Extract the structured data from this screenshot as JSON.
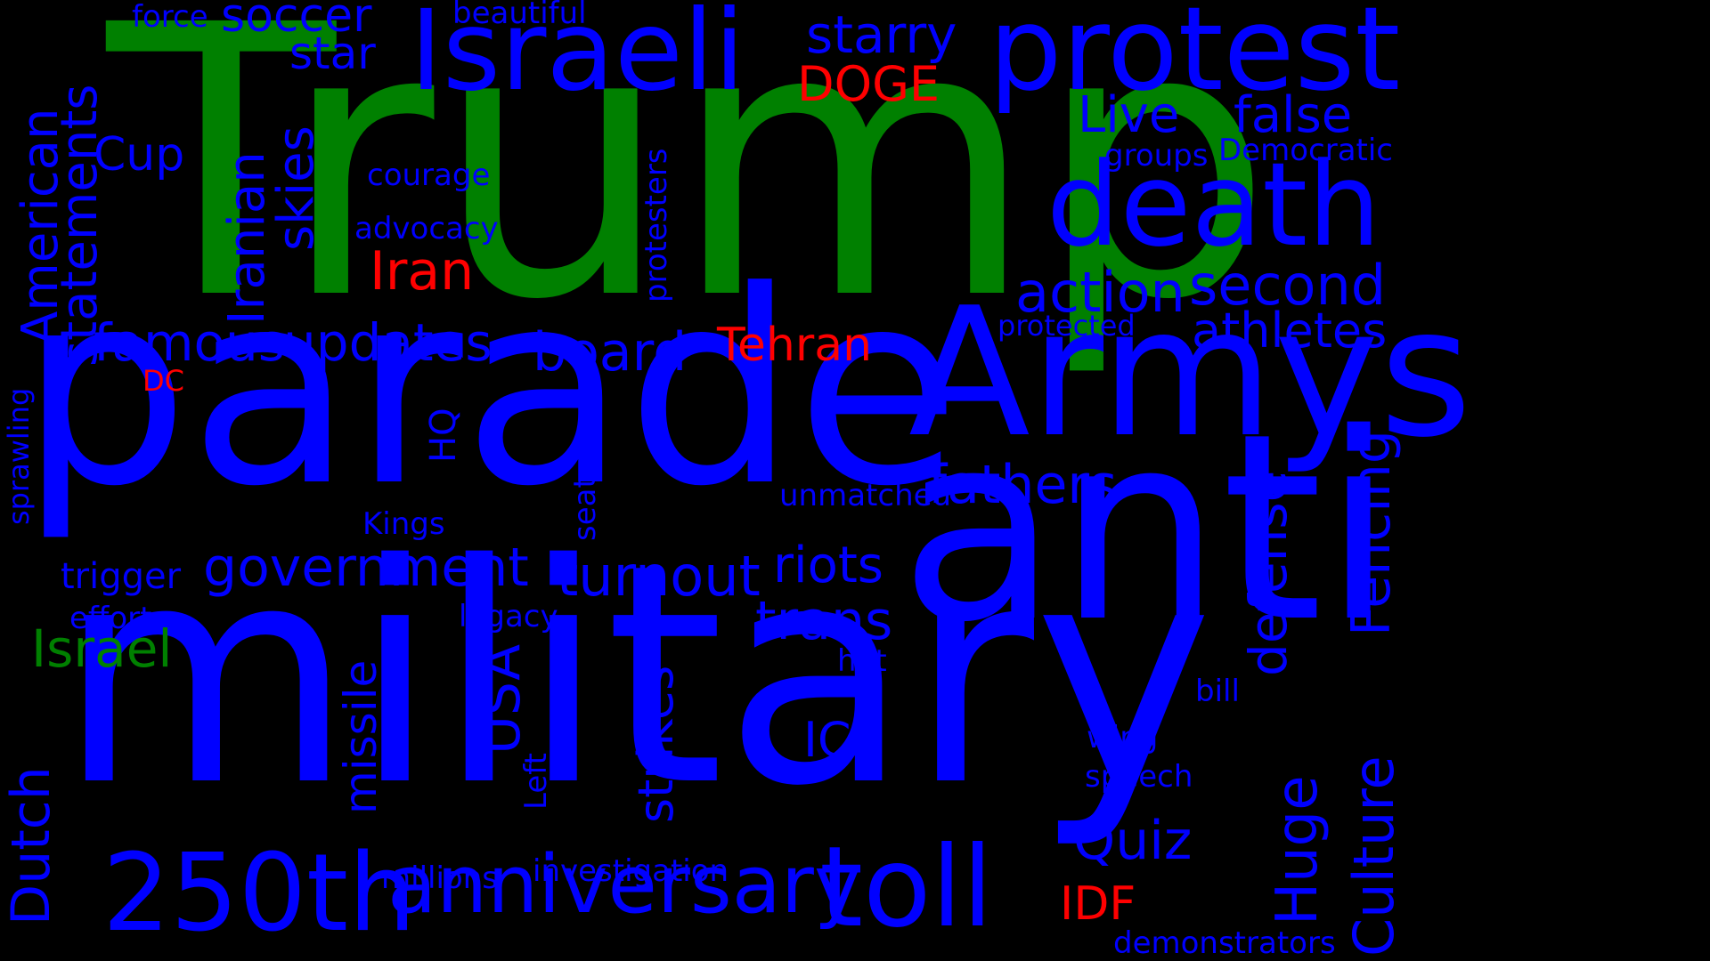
{
  "colors": {
    "background": "#000000",
    "blue": "#0000FF",
    "green": "#008000",
    "red": "#FF0000"
  },
  "words": {
    "trump": "Trump",
    "parade": "parade",
    "military": "military",
    "anti": "anti",
    "armys": "Armys",
    "protest": "protest",
    "israeli": "Israeli",
    "death": "death",
    "toll": "toll",
    "anniversary": "anniversary",
    "w250th": "250th",
    "soccer": "soccer",
    "force": "force",
    "beautiful": "beautiful",
    "starry": "starry",
    "star": "star",
    "doge": "DOGE",
    "live": "Live",
    "false": "false",
    "cup": "Cup",
    "courage": "courage",
    "groups": "groups",
    "democratic": "Democratic",
    "advocacy": "advocacy",
    "iran": "Iran",
    "action": "action",
    "second": "second",
    "famous": "famous",
    "updates": "updates",
    "board": "board",
    "tehran": "Tehran",
    "protected": "protected",
    "athletes": "athletes",
    "dc": "DC",
    "fathers": "fathers",
    "unmatched": "unmatched",
    "kings": "Kings",
    "government": "government",
    "trigger": "trigger",
    "turnout": "turnout",
    "riots": "riots",
    "effort": "effort",
    "israel": "Israel",
    "legacy": "legacy",
    "trans": "trans",
    "hot": "hot",
    "bill": "bill",
    "ice": "ICE",
    "wing": "wing",
    "speech": "speech",
    "quiz": "Quiz",
    "millions": "millions",
    "investigation": "investigation",
    "idf": "IDF",
    "demonstrators": "demonstrators",
    "american": "American",
    "statements": "statements",
    "iranian": "Iranian",
    "skies": "skies",
    "protesters": "protesters",
    "sprawling": "sprawling",
    "hq": "HQ",
    "seat": "seat",
    "missile": "missile",
    "usa": "USA",
    "left": "Left",
    "strikes": "strikes",
    "dutch": "Dutch",
    "defense": "defense",
    "fencing": "Fencing",
    "culture": "Culture",
    "huge": "Huge"
  }
}
